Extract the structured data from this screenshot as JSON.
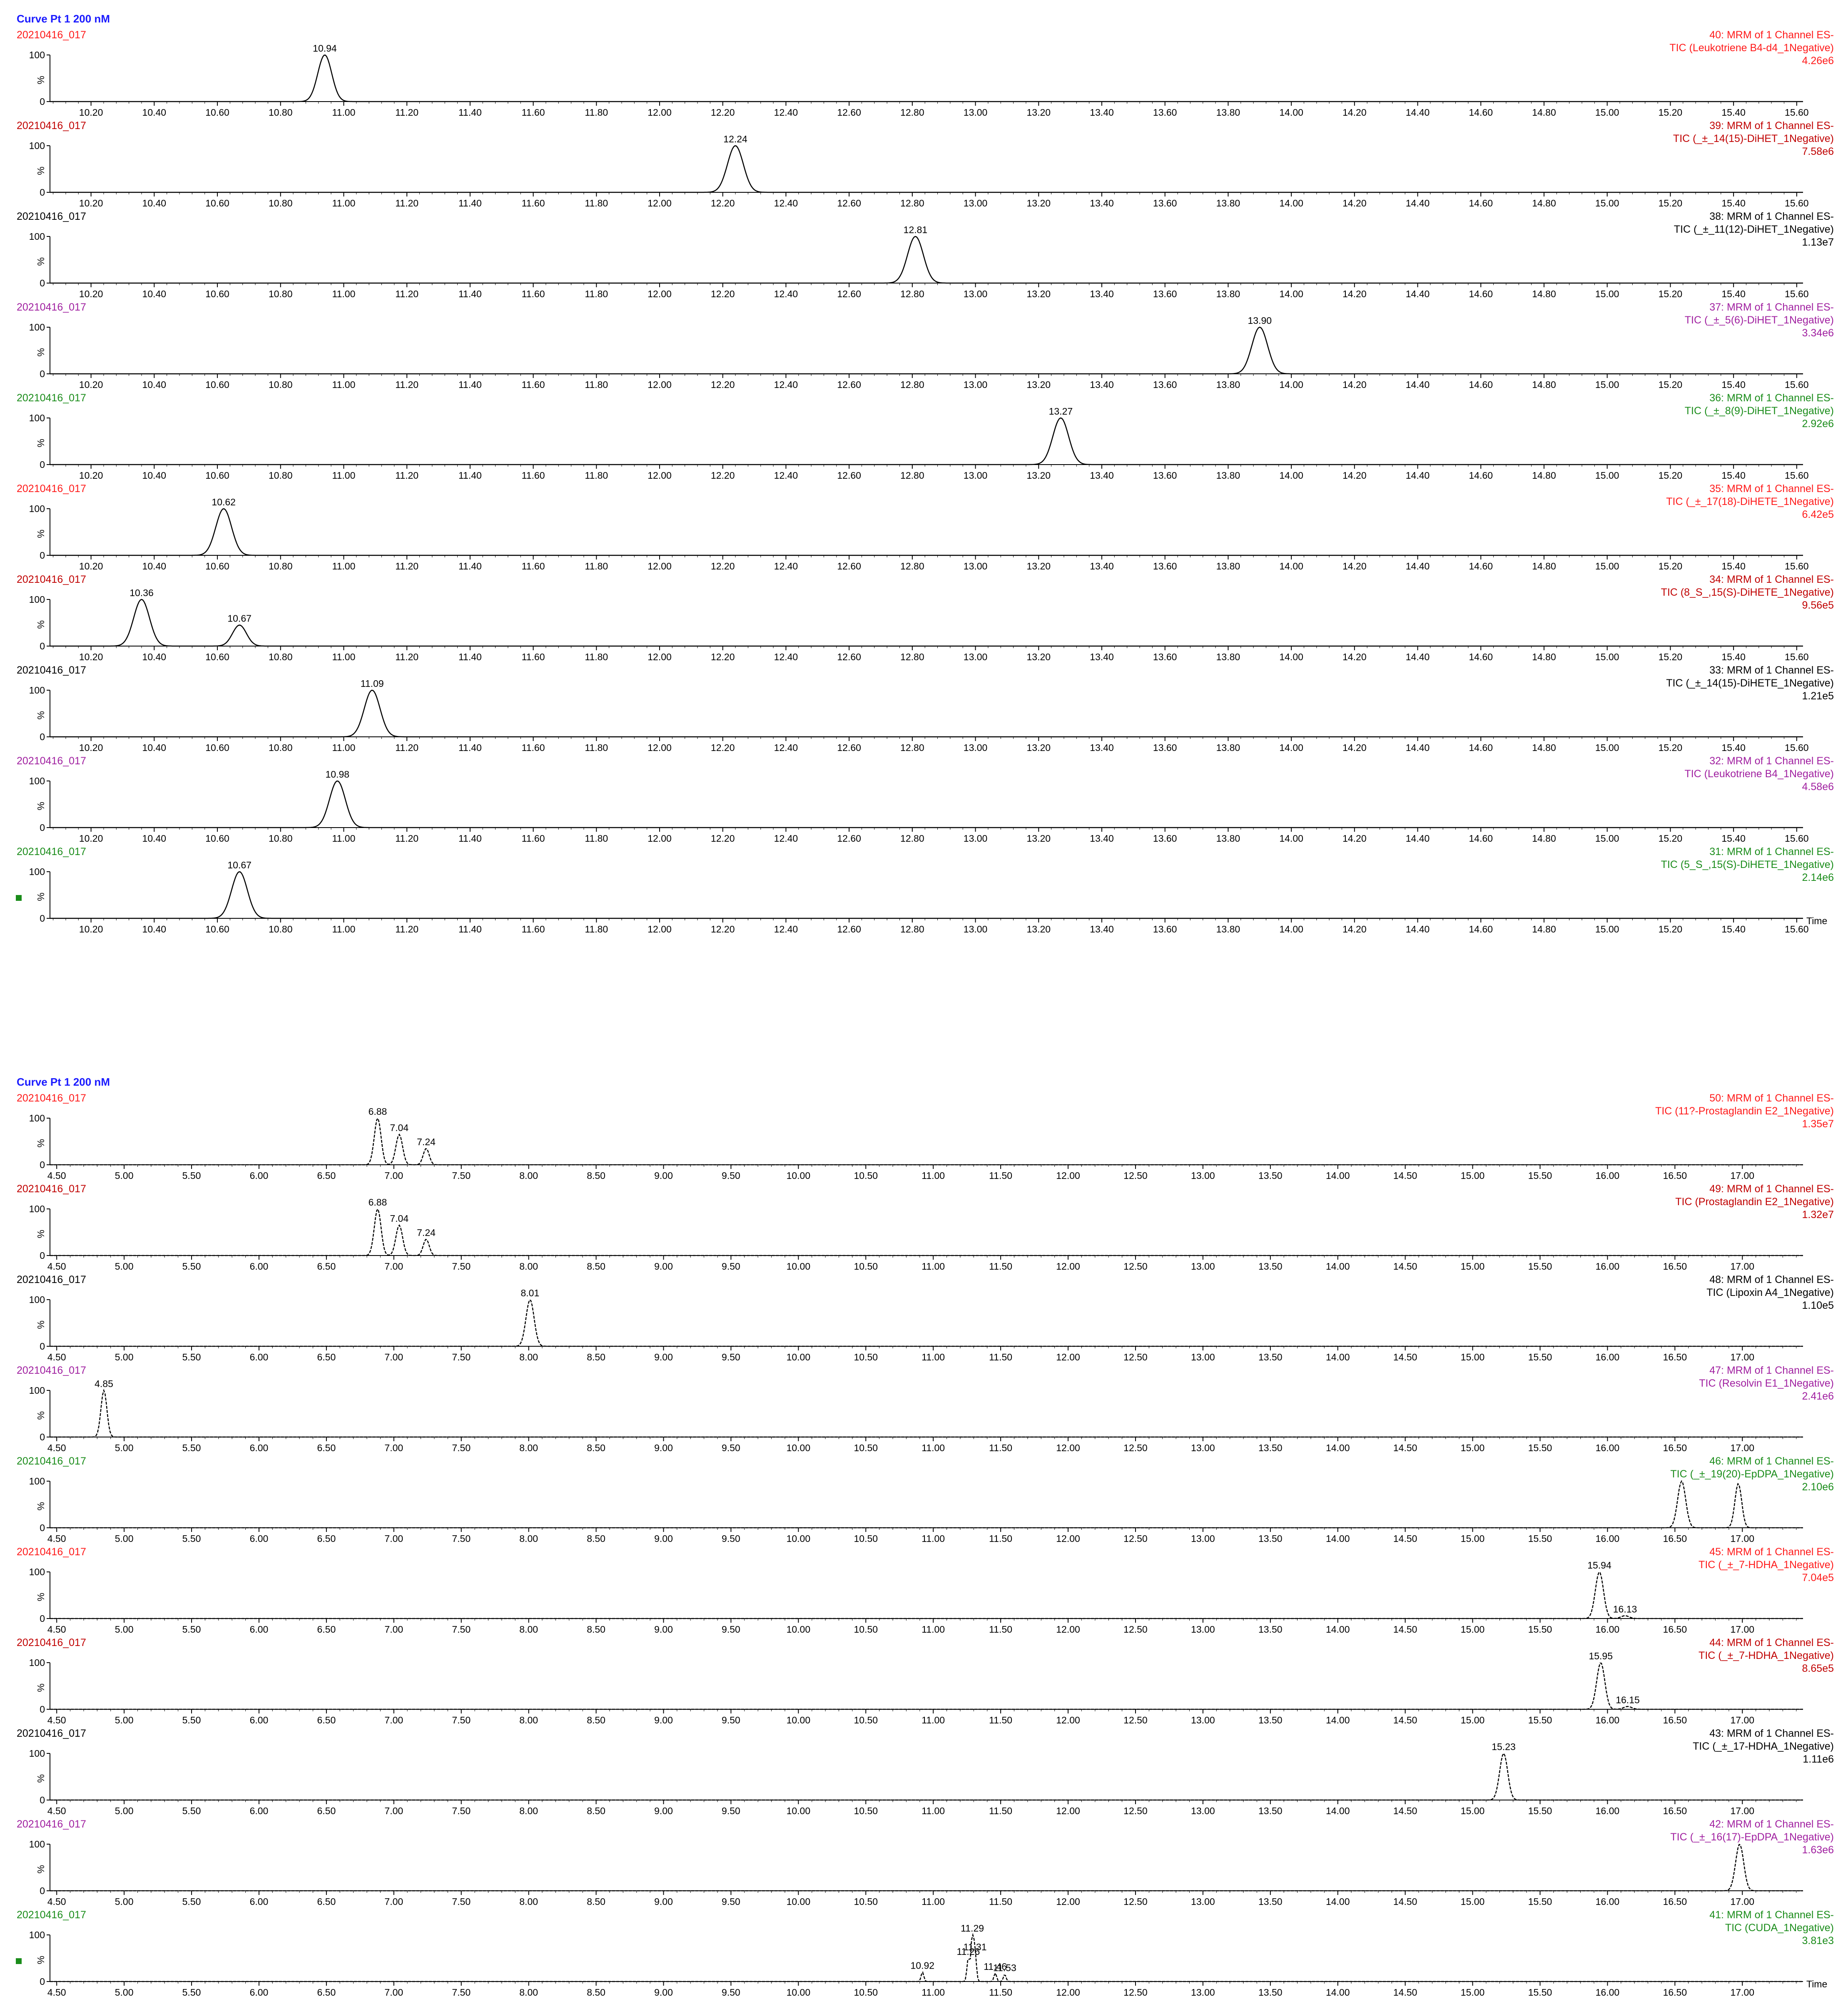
{
  "groups": [
    {
      "header": "Curve Pt 1 200 nM",
      "xlim": [
        10.07,
        15.62
      ],
      "ticks": [
        "10.20",
        "10.40",
        "10.60",
        "10.80",
        "11.00",
        "11.20",
        "11.40",
        "11.60",
        "11.80",
        "12.00",
        "12.20",
        "12.40",
        "12.60",
        "12.80",
        "13.00",
        "13.20",
        "13.40",
        "13.60",
        "13.80",
        "14.00",
        "14.20",
        "14.40",
        "14.60",
        "14.80",
        "15.00",
        "15.20",
        "15.40",
        "15.60"
      ]
    },
    {
      "header": "Curve Pt 1 200 nM",
      "xlim": [
        4.45,
        17.45
      ],
      "ticks": [
        "4.50",
        "5.00",
        "5.50",
        "6.00",
        "6.50",
        "7.00",
        "7.50",
        "8.00",
        "8.50",
        "9.00",
        "9.50",
        "10.00",
        "10.50",
        "11.00",
        "11.50",
        "12.00",
        "12.50",
        "13.00",
        "13.50",
        "14.00",
        "14.50",
        "15.00",
        "15.50",
        "16.00",
        "16.50",
        "17.00"
      ]
    }
  ],
  "axis": {
    "y100": "100",
    "ypct": "%",
    "y0": "0",
    "time_label": "Time"
  },
  "chart_data": [
    {
      "type": "line",
      "x_unit": "Time",
      "ylim": [
        0,
        100
      ],
      "panels": [
        {
          "ref": "20210416_017",
          "color": "#ff1a1a",
          "lines": [
            "40: MRM of 1 Channel ES-",
            "TIC (Leukotriene B4-d4_1Negative)",
            "4.26e6"
          ],
          "peaks": [
            {
              "rt": 10.94,
              "h": 100,
              "w": 0.022,
              "label": "10.94"
            }
          ]
        },
        {
          "ref": "20210416_017",
          "color": "#c00000",
          "lines": [
            "39: MRM of 1 Channel ES-",
            "TIC (_±_14(15)-DiHET_1Negative)",
            "7.58e6"
          ],
          "peaks": [
            {
              "rt": 12.24,
              "h": 100,
              "w": 0.025,
              "label": "12.24"
            }
          ]
        },
        {
          "ref": "20210416_017",
          "color": "#000000",
          "lines": [
            "38: MRM of 1 Channel ES-",
            "TIC (_±_11(12)-DiHET_1Negative)",
            "1.13e7"
          ],
          "peaks": [
            {
              "rt": 12.81,
              "h": 100,
              "w": 0.025,
              "label": "12.81"
            }
          ]
        },
        {
          "ref": "20210416_017",
          "color": "#a020a0",
          "lines": [
            "37: MRM of 1 Channel ES-",
            "TIC (_±_5(6)-DiHET_1Negative)",
            "3.34e6"
          ],
          "peaks": [
            {
              "rt": 13.9,
              "h": 100,
              "w": 0.025,
              "label": "13.90"
            }
          ]
        },
        {
          "ref": "20210416_017",
          "color": "#1a8c1a",
          "lines": [
            "36: MRM of 1 Channel ES-",
            "TIC (_±_8(9)-DiHET_1Negative)",
            "2.92e6"
          ],
          "peaks": [
            {
              "rt": 13.27,
              "h": 100,
              "w": 0.025,
              "label": "13.27"
            }
          ]
        },
        {
          "ref": "20210416_017",
          "color": "#ff1a1a",
          "lines": [
            "35: MRM of 1 Channel ES-",
            "TIC (_±_17(18)-DiHETE_1Negative)",
            "6.42e5"
          ],
          "peaks": [
            {
              "rt": 10.62,
              "h": 100,
              "w": 0.025,
              "label": "10.62"
            }
          ]
        },
        {
          "ref": "20210416_017",
          "color": "#c00000",
          "lines": [
            "34: MRM of 1 Channel ES-",
            "TIC (8_S_,15(S)-DiHETE_1Negative)",
            "9.56e5"
          ],
          "peaks": [
            {
              "rt": 10.36,
              "h": 100,
              "w": 0.025,
              "label": "10.36"
            },
            {
              "rt": 10.67,
              "h": 45,
              "w": 0.022,
              "label": "10.67"
            }
          ]
        },
        {
          "ref": "20210416_017",
          "color": "#000000",
          "lines": [
            "33: MRM of 1 Channel ES-",
            "TIC (_±_14(15)-DiHETE_1Negative)",
            "1.21e5"
          ],
          "peaks": [
            {
              "rt": 11.09,
              "h": 100,
              "w": 0.025,
              "label": "11.09"
            }
          ]
        },
        {
          "ref": "20210416_017",
          "color": "#a020a0",
          "lines": [
            "32: MRM of 1 Channel ES-",
            "TIC (Leukotriene B4_1Negative)",
            "4.58e6"
          ],
          "peaks": [
            {
              "rt": 10.98,
              "h": 100,
              "w": 0.025,
              "label": "10.98"
            }
          ]
        },
        {
          "ref": "20210416_017",
          "color": "#1a8c1a",
          "lines": [
            "31: MRM of 1 Channel ES-",
            "TIC (5_S_,15(S)-DiHETE_1Negative)",
            "2.14e6"
          ],
          "peaks": [
            {
              "rt": 10.67,
              "h": 100,
              "w": 0.025,
              "label": "10.67"
            }
          ]
        }
      ]
    },
    {
      "type": "line",
      "x_unit": "Time",
      "ylim": [
        0,
        100
      ],
      "panels": [
        {
          "ref": "20210416_017",
          "color": "#ff1a1a",
          "lines": [
            "50: MRM of 1 Channel ES-",
            "TIC (11?-Prostaglandin E2_1Negative)",
            "1.35e7"
          ],
          "peaks": [
            {
              "rt": 6.88,
              "h": 100,
              "w": 0.025,
              "label": "6.88"
            },
            {
              "rt": 7.04,
              "h": 65,
              "w": 0.025,
              "label": "7.04"
            },
            {
              "rt": 7.24,
              "h": 35,
              "w": 0.022,
              "label": "7.24"
            }
          ]
        },
        {
          "ref": "20210416_017",
          "color": "#c00000",
          "lines": [
            "49: MRM of 1 Channel ES-",
            "TIC (Prostaglandin E2_1Negative)",
            "1.32e7"
          ],
          "peaks": [
            {
              "rt": 6.88,
              "h": 100,
              "w": 0.025,
              "label": "6.88"
            },
            {
              "rt": 7.04,
              "h": 65,
              "w": 0.025,
              "label": "7.04"
            },
            {
              "rt": 7.24,
              "h": 35,
              "w": 0.022,
              "label": "7.24"
            }
          ]
        },
        {
          "ref": "20210416_017",
          "color": "#000000",
          "lines": [
            "48: MRM of 1 Channel ES-",
            "TIC (Lipoxin A4_1Negative)",
            "1.10e5"
          ],
          "peaks": [
            {
              "rt": 8.01,
              "h": 100,
              "w": 0.03,
              "label": "8.01"
            }
          ]
        },
        {
          "ref": "20210416_017",
          "color": "#a020a0",
          "lines": [
            "47: MRM of 1 Channel ES-",
            "TIC (Resolvin E1_1Negative)",
            "2.41e6"
          ],
          "peaks": [
            {
              "rt": 4.85,
              "h": 100,
              "w": 0.022,
              "label": "4.85"
            }
          ]
        },
        {
          "ref": "20210416_017",
          "color": "#1a8c1a",
          "lines": [
            "46: MRM of 1 Channel ES-",
            "TIC (_±_19(20)-EpDPA_1Negative)",
            "2.10e6"
          ],
          "peaks": [
            {
              "rt": 16.55,
              "h": 100,
              "w": 0.03,
              "label": ""
            },
            {
              "rt": 16.97,
              "h": 95,
              "w": 0.025,
              "label": ""
            }
          ]
        },
        {
          "ref": "20210416_017",
          "color": "#ff1a1a",
          "lines": [
            "45: MRM of 1 Channel ES-",
            "TIC (_±_7-HDHA_1Negative)",
            "7.04e5"
          ],
          "peaks": [
            {
              "rt": 15.94,
              "h": 100,
              "w": 0.03,
              "label": "15.94"
            },
            {
              "rt": 16.13,
              "h": 6,
              "w": 0.03,
              "label": "16.13"
            }
          ]
        },
        {
          "ref": "20210416_017",
          "color": "#c00000",
          "lines": [
            "44: MRM of 1 Channel ES-",
            "TIC (_±_7-HDHA_1Negative)",
            "8.65e5"
          ],
          "peaks": [
            {
              "rt": 15.95,
              "h": 100,
              "w": 0.03,
              "label": "15.95"
            },
            {
              "rt": 16.15,
              "h": 6,
              "w": 0.03,
              "label": "16.15"
            }
          ]
        },
        {
          "ref": "20210416_017",
          "color": "#000000",
          "lines": [
            "43: MRM of 1 Channel ES-",
            "TIC (_±_17-HDHA_1Negative)",
            "1.11e6"
          ],
          "peaks": [
            {
              "rt": 15.23,
              "h": 100,
              "w": 0.03,
              "label": "15.23"
            }
          ]
        },
        {
          "ref": "20210416_017",
          "color": "#a020a0",
          "lines": [
            "42: MRM of 1 Channel ES-",
            "TIC (_±_16(17)-EpDPA_1Negative)",
            "1.63e6"
          ],
          "peaks": [
            {
              "rt": 16.98,
              "h": 100,
              "w": 0.03,
              "label": ""
            }
          ]
        },
        {
          "ref": "20210416_017",
          "color": "#1a8c1a",
          "lines": [
            "41: MRM of 1 Channel ES-",
            "TIC (CUDA_1Negative)",
            "3.81e3"
          ],
          "peaks": [
            {
              "rt": 10.92,
              "h": 20,
              "w": 0.01,
              "label": "10.92"
            },
            {
              "rt": 11.26,
              "h": 50,
              "w": 0.01,
              "label": "11.26"
            },
            {
              "rt": 11.29,
              "h": 100,
              "w": 0.01,
              "label": "11.29"
            },
            {
              "rt": 11.31,
              "h": 60,
              "w": 0.01,
              "label": "11.31"
            },
            {
              "rt": 11.46,
              "h": 18,
              "w": 0.01,
              "label": "11.46"
            },
            {
              "rt": 11.53,
              "h": 15,
              "w": 0.01,
              "label": "11.53"
            }
          ]
        }
      ]
    }
  ]
}
